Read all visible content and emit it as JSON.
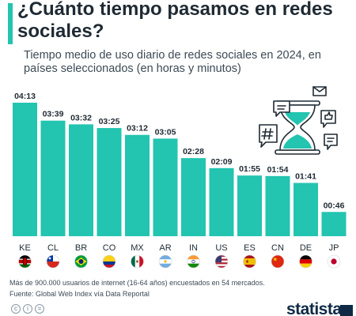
{
  "title": "¿Cuánto tiempo pasamos en redes sociales?",
  "subtitle": "Tiempo medio de uso diario de redes sociales en 2024, en países seleccionados (en horas y minutos)",
  "footnote_1": "Más de 900.000 usuarios de internet (16-64 años) encuestados en 54 mercados.",
  "footnote_2": "Fuente: Global Web Index vía Data Reportal",
  "footer_icons": [
    "c",
    "i",
    "="
  ],
  "brand": "statista",
  "colors": {
    "bar": "#23c4b0",
    "accent": "#23c4b0",
    "text": "#1f2a33",
    "brand": "#0e2a45"
  },
  "chart_data": {
    "type": "bar",
    "title": "¿Cuánto tiempo pasamos en redes sociales?",
    "xlabel": "",
    "ylabel": "",
    "ylim": [
      0,
      253
    ],
    "grid": false,
    "categories": [
      "KE",
      "CL",
      "BR",
      "CO",
      "MX",
      "AR",
      "IN",
      "US",
      "ES",
      "CN",
      "DE",
      "JP"
    ],
    "values": [
      253,
      219,
      212,
      205,
      192,
      185,
      148,
      129,
      115,
      114,
      101,
      46
    ],
    "labels": [
      "04:13",
      "03:39",
      "03:32",
      "03:25",
      "03:12",
      "03:05",
      "02:28",
      "02:09",
      "01:55",
      "01:54",
      "01:41",
      "00:46"
    ],
    "flags": [
      "kenya-flag",
      "chile-flag",
      "brazil-flag",
      "colombia-flag",
      "mexico-flag",
      "argentina-flag",
      "india-flag",
      "usa-flag",
      "spain-flag",
      "china-flag",
      "germany-flag",
      "japan-flag"
    ]
  }
}
